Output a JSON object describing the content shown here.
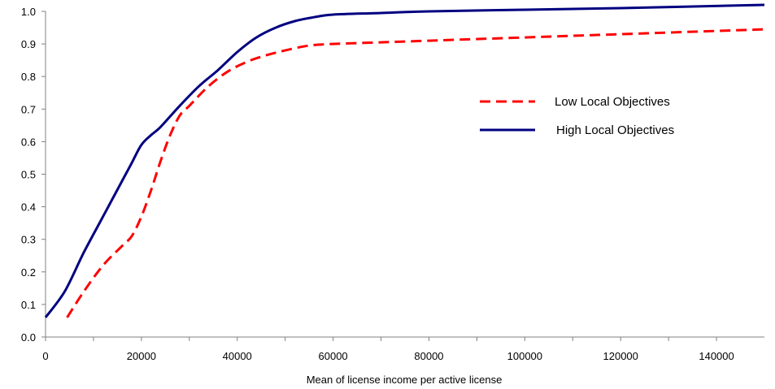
{
  "chart_data": {
    "type": "line",
    "title": "",
    "xlabel": "Mean of license income per active license",
    "ylabel": "",
    "xlim": [
      0,
      150000
    ],
    "ylim": [
      0,
      1.0
    ],
    "x_ticks": [
      "0",
      "20000",
      "40000",
      "60000",
      "80000",
      "100000",
      "120000",
      "140000"
    ],
    "y_ticks": [
      "0.0",
      "0.1",
      "0.2",
      "0.3",
      "0.4",
      "0.5",
      "0.6",
      "0.7",
      "0.8",
      "0.9",
      "1.0"
    ],
    "grid": false,
    "legend_position": "right",
    "series": [
      {
        "name": "Low Local Objectives",
        "color": "#ff0000",
        "style": "dashed",
        "x": [
          4500,
          8000,
          12000,
          16000,
          18000,
          20000,
          22000,
          24000,
          26000,
          28000,
          30000,
          34000,
          38000,
          42000,
          46000,
          50000,
          55000,
          60000,
          70000,
          80000,
          100000,
          120000,
          150000
        ],
        "y": [
          0.06,
          0.14,
          0.22,
          0.28,
          0.31,
          0.37,
          0.45,
          0.54,
          0.62,
          0.68,
          0.71,
          0.77,
          0.815,
          0.845,
          0.865,
          0.88,
          0.895,
          0.9,
          0.905,
          0.91,
          0.92,
          0.93,
          0.945
        ]
      },
      {
        "name": "High Local Objectives",
        "color": "#000080",
        "style": "solid",
        "x": [
          0,
          4000,
          8000,
          12000,
          16000,
          18000,
          20000,
          22000,
          24000,
          28000,
          32000,
          36000,
          40000,
          44000,
          48000,
          52000,
          56000,
          60000,
          70000,
          80000,
          100000,
          120000,
          150000
        ],
        "y": [
          0.06,
          0.14,
          0.26,
          0.37,
          0.48,
          0.535,
          0.59,
          0.62,
          0.645,
          0.71,
          0.77,
          0.82,
          0.875,
          0.92,
          0.95,
          0.97,
          0.982,
          0.99,
          0.995,
          1.0,
          1.005,
          1.01,
          1.02
        ]
      }
    ]
  }
}
